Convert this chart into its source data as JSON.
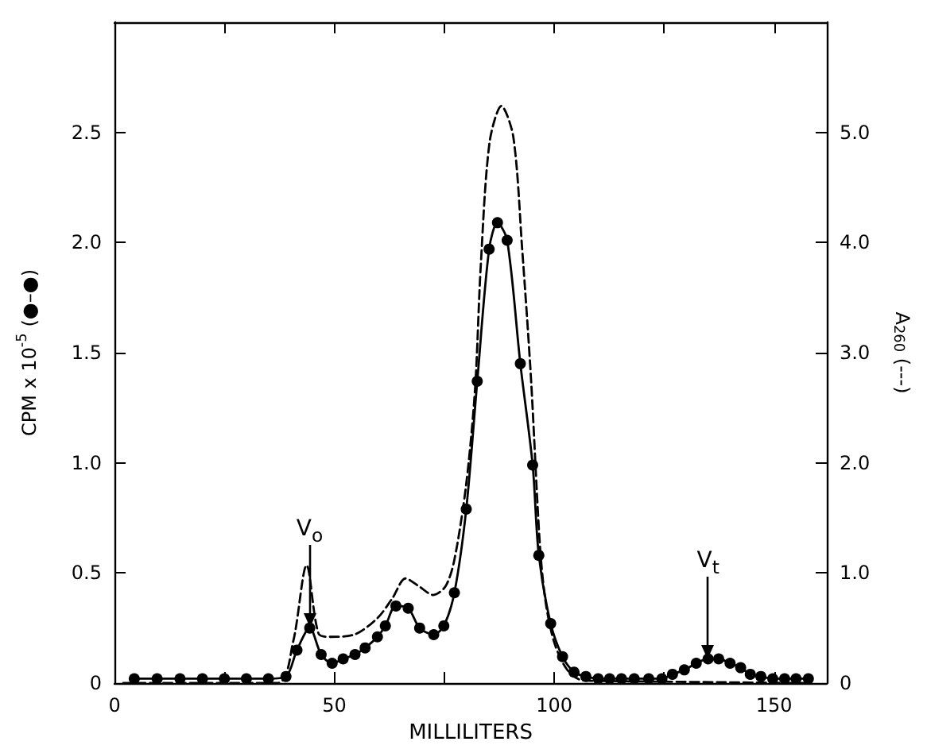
{
  "chart_data": {
    "type": "line",
    "xlabel": "MILLILITERS",
    "ylabel": "CPM x 10$^{-5}$ (●–●)",
    "y2label": "A$_{260}$ (---)",
    "xlim": [
      0,
      162
    ],
    "xticks": [
      0,
      {
        "value": 25,
        "label": null
      },
      50,
      {
        "value": 75,
        "label": null
      },
      100,
      {
        "value": 125,
        "label": null
      },
      150
    ],
    "ylim": [
      0,
      3.0
    ],
    "yticks": [
      0,
      0.5,
      {
        "value": 1,
        "label": "1.0"
      },
      1.5,
      {
        "value": 2,
        "label": "2.0"
      },
      2.5
    ],
    "y2lim": [
      0,
      6.0
    ],
    "y2ticks": [
      0,
      {
        "value": 1,
        "label": "1.0"
      },
      {
        "value": 2,
        "label": "2.0"
      },
      {
        "value": 3,
        "label": "3.0"
      },
      {
        "value": 4,
        "label": "4.0"
      },
      {
        "value": 5,
        "label": "5.0"
      }
    ],
    "grid": false,
    "annotations": [
      {
        "text": "V$_{o}$",
        "x": 44.4,
        "y": 0.25
      },
      {
        "text": "V$_{t}$",
        "x": 135,
        "y": 0.11
      }
    ],
    "series": [
      {
        "color": "#000000",
        "marker": "circle",
        "line_style": "solid",
        "x": [
          4.5,
          9.7,
          14.9,
          20,
          25,
          30,
          35,
          39,
          41.5,
          44.4,
          47,
          49.5,
          52,
          54.7,
          57,
          59.8,
          61.6,
          64,
          66.8,
          69.4,
          72.6,
          74.9,
          77.3,
          80,
          82.5,
          85.2,
          87.1,
          89.3,
          92.3,
          95.1,
          96.5,
          99.2,
          101.9,
          104.5,
          107.2,
          110,
          112.6,
          115.3,
          118.2,
          121.5,
          124.5,
          126.9,
          129.6,
          132.3,
          135,
          137.4,
          140,
          142.4,
          144.6,
          147,
          149.7,
          152.4,
          155,
          157.8
        ],
        "values": [
          0.02,
          0.02,
          0.02,
          0.02,
          0.02,
          0.02,
          0.02,
          0.03,
          0.15,
          0.25,
          0.13,
          0.09,
          0.11,
          0.13,
          0.16,
          0.21,
          0.26,
          0.35,
          0.34,
          0.25,
          0.22,
          0.26,
          0.41,
          0.79,
          1.37,
          1.97,
          2.09,
          2.01,
          1.45,
          0.99,
          0.58,
          0.27,
          0.12,
          0.05,
          0.03,
          0.02,
          0.02,
          0.02,
          0.02,
          0.02,
          0.02,
          0.04,
          0.06,
          0.09,
          0.11,
          0.11,
          0.09,
          0.07,
          0.04,
          0.03,
          0.02,
          0.02,
          0.02,
          0.02
        ]
      },
      {
        "color": "#000000",
        "marker": "none",
        "line_style": "dashed",
        "axis": "y2",
        "x": [
          2,
          37,
          40.6,
          43.7,
          46.4,
          49.1,
          54.5,
          59.8,
          63.2,
          66.2,
          69.2,
          72.5,
          75.3,
          77.3,
          80,
          82,
          83.3,
          85.3,
          88,
          90.7,
          92.7,
          94.7,
          96.7,
          98,
          100,
          102.8,
          106,
          110,
          158
        ],
        "values": [
          0,
          0,
          0.37,
          1.07,
          0.45,
          0.42,
          0.44,
          0.59,
          0.77,
          0.95,
          0.88,
          0.8,
          0.88,
          1.12,
          1.81,
          2.67,
          3.79,
          4.91,
          5.24,
          4.96,
          3.95,
          2.78,
          1.28,
          0.75,
          0.37,
          0.13,
          0.03,
          0.02,
          0
        ]
      }
    ]
  }
}
